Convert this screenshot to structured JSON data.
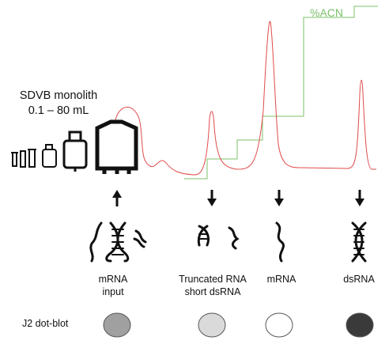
{
  "column": {
    "name": "SDVB monolith",
    "volume_range": "0.1 – 80 mL"
  },
  "gradient_label": "%ACN",
  "colors": {
    "chromatogram": "#e04a4a",
    "gradient": "#7cc06a",
    "ink": "#111111"
  },
  "fractions": [
    {
      "id": "input",
      "lines": [
        "mRNA",
        "input"
      ],
      "arrow": "up",
      "icon": "mixed-rna-dna-icon",
      "dot_color": "#a0a0a0"
    },
    {
      "id": "truncated",
      "lines": [
        "Truncated RNA",
        "short dsRNA"
      ],
      "arrow": "down",
      "icon": "short-rna-icon",
      "dot_color": "#dadada"
    },
    {
      "id": "mrna",
      "lines": [
        "mRNA"
      ],
      "arrow": "down",
      "icon": "single-strand-icon",
      "dot_color": "#ffffff"
    },
    {
      "id": "dsrna",
      "lines": [
        "dsRNA"
      ],
      "arrow": "down",
      "icon": "double-helix-icon",
      "dot_color": "#3a3a3a"
    }
  ],
  "assay_label": "J2 dot-blot"
}
